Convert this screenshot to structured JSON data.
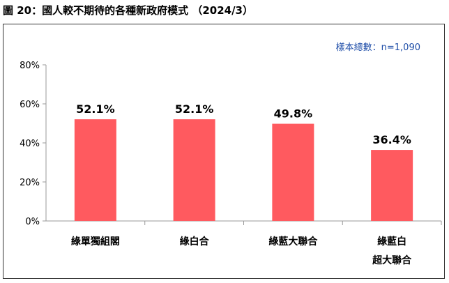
{
  "figure_title": "圖 20：國人較不期待的各種新政府模式 （2024/3）",
  "sample_size": "樣本總數：n=1,090",
  "colors": {
    "bar": "#ff5a5f",
    "axis": "#999999",
    "grid": "#cfcfcf"
  },
  "chart_data": {
    "type": "bar",
    "title": "",
    "categories": [
      [
        "綠單獨組閣"
      ],
      [
        "綠白合"
      ],
      [
        "綠藍大聯合"
      ],
      [
        "綠藍白",
        "超大聯合"
      ]
    ],
    "values": [
      52.1,
      52.1,
      49.8,
      36.4
    ],
    "value_labels": [
      "52.1%",
      "52.1%",
      "49.8%",
      "36.4%"
    ],
    "yticks": [
      0,
      20,
      40,
      60,
      80
    ],
    "ytick_labels": [
      "0%",
      "20%",
      "40%",
      "60%",
      "80%"
    ],
    "ylim": [
      0,
      80
    ],
    "xlabel": "",
    "ylabel": "",
    "grid": "y-only-ticks",
    "legend": "none"
  }
}
